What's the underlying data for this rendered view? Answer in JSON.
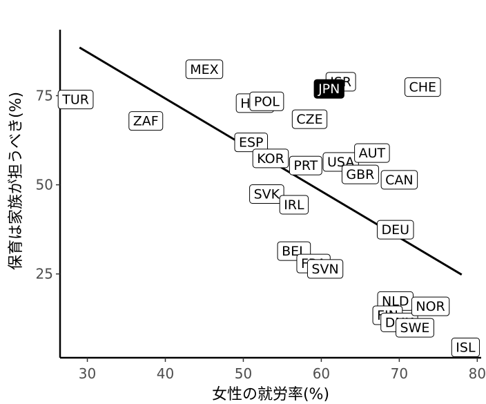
{
  "chart_data": {
    "type": "scatter",
    "xlabel": "女性の就労率(%)",
    "ylabel": "保育は家族が担うべき(%)",
    "xlim": [
      26.5,
      80.5
    ],
    "ylim": [
      1.5,
      93.5
    ],
    "xticks": [
      30,
      40,
      50,
      60,
      70,
      80
    ],
    "yticks": [
      25,
      50,
      75
    ],
    "grid": false,
    "highlight": "JPN",
    "points": [
      {
        "label": "TUR",
        "x": 28.5,
        "y": 74.0
      },
      {
        "label": "ZAF",
        "x": 37.5,
        "y": 68.0
      },
      {
        "label": "MEX",
        "x": 45.0,
        "y": 82.5
      },
      {
        "label": "HUN",
        "x": 51.5,
        "y": 73.0
      },
      {
        "label": "POL",
        "x": 53.0,
        "y": 73.5
      },
      {
        "label": "ISR",
        "x": 62.5,
        "y": 79.0
      },
      {
        "label": "JPN",
        "x": 61.0,
        "y": 77.0
      },
      {
        "label": "CHE",
        "x": 73.0,
        "y": 77.5
      },
      {
        "label": "CZE",
        "x": 58.5,
        "y": 68.5
      },
      {
        "label": "ESP",
        "x": 51.0,
        "y": 62.0
      },
      {
        "label": "KOR",
        "x": 53.5,
        "y": 57.5
      },
      {
        "label": "PRT",
        "x": 58.0,
        "y": 55.5
      },
      {
        "label": "USA",
        "x": 62.5,
        "y": 56.5
      },
      {
        "label": "AUT",
        "x": 66.5,
        "y": 59.0
      },
      {
        "label": "GBR",
        "x": 65.0,
        "y": 53.0
      },
      {
        "label": "CAN",
        "x": 70.0,
        "y": 51.5
      },
      {
        "label": "SVK",
        "x": 53.0,
        "y": 47.5
      },
      {
        "label": "IRL",
        "x": 56.5,
        "y": 44.5
      },
      {
        "label": "DEU",
        "x": 69.5,
        "y": 37.5
      },
      {
        "label": "BEL",
        "x": 56.5,
        "y": 31.5
      },
      {
        "label": "FRA",
        "x": 59.0,
        "y": 28.0
      },
      {
        "label": "SVN",
        "x": 60.5,
        "y": 26.5
      },
      {
        "label": "NLD",
        "x": 69.5,
        "y": 17.5
      },
      {
        "label": "FIN",
        "x": 68.5,
        "y": 13.5
      },
      {
        "label": "DNK",
        "x": 70.0,
        "y": 11.5
      },
      {
        "label": "NOR",
        "x": 74.0,
        "y": 16.0
      },
      {
        "label": "SWE",
        "x": 72.0,
        "y": 10.0
      },
      {
        "label": "ISL",
        "x": 78.5,
        "y": 4.5
      }
    ],
    "trend_line": {
      "x": [
        29.0,
        78.0
      ],
      "y": [
        88.5,
        24.8
      ]
    }
  }
}
